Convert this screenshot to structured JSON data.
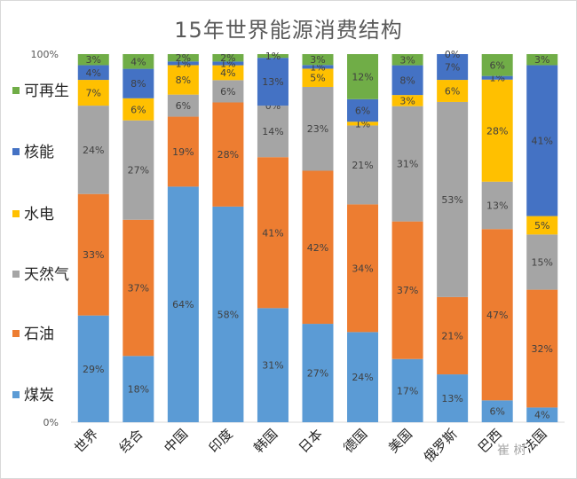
{
  "chart_data": {
    "type": "bar",
    "stacked": "percent",
    "title": "15年世界能源消费结构",
    "categories": [
      "世界",
      "经合",
      "中国",
      "印度",
      "韩国",
      "日本",
      "德国",
      "美国",
      "俄罗斯",
      "巴西",
      "法国"
    ],
    "category_labels_shown": [
      "世界",
      "经合",
      "中国",
      "印度",
      "韩国",
      "日本",
      "德国",
      "美国",
      "俄罗斯",
      "巴西",
      "法国"
    ],
    "series": [
      {
        "name": "煤炭",
        "color": "#5b9bd5",
        "values": [
          29,
          18,
          64,
          58,
          31,
          27,
          24,
          17,
          13,
          6,
          4
        ]
      },
      {
        "name": "石油",
        "color": "#ed7d31",
        "values": [
          33,
          37,
          19,
          28,
          41,
          42,
          34,
          37,
          21,
          47,
          32
        ]
      },
      {
        "name": "天然气",
        "color": "#a5a5a5",
        "values": [
          24,
          27,
          6,
          6,
          14,
          23,
          21,
          31,
          53,
          13,
          15
        ]
      },
      {
        "name": "水电",
        "color": "#ffc000",
        "values": [
          7,
          6,
          8,
          4,
          0,
          5,
          1,
          3,
          6,
          28,
          5
        ]
      },
      {
        "name": "核能",
        "color": "#4472c4",
        "values": [
          4,
          8,
          1,
          1,
          13,
          1,
          6,
          8,
          7,
          1,
          41
        ]
      },
      {
        "name": "可再生",
        "color": "#70ad47",
        "values": [
          3,
          4,
          2,
          2,
          1,
          3,
          12,
          3,
          0,
          6,
          3
        ]
      }
    ],
    "ylim": [
      0,
      100
    ],
    "ytick_labels": [
      "0%",
      "100%"
    ],
    "legend_position": "left",
    "legend_order": [
      "可再生",
      "核能",
      "水电",
      "天然气",
      "石油",
      "煤炭"
    ],
    "data_label_format": "percent"
  },
  "watermark": "崔",
  "watermark_tail": "树"
}
